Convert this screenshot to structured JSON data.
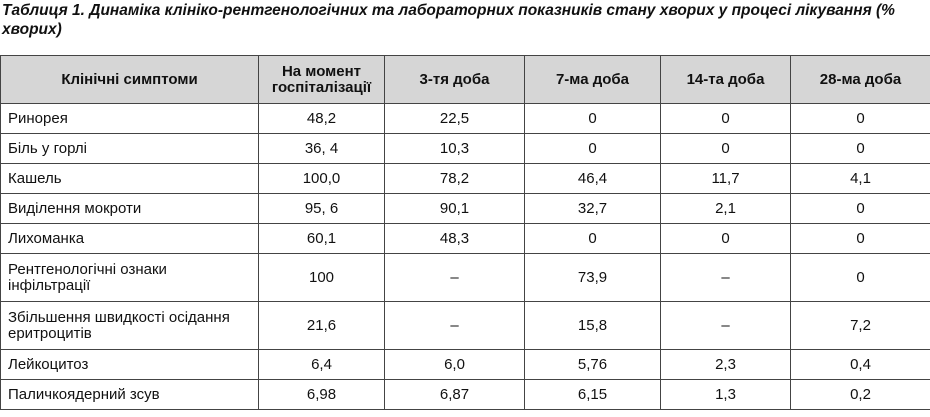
{
  "title": "Таблиця 1.  Динаміка клініко-рентгенологічних та лабораторних показників стану хворих у процесі лікування (% хворих)",
  "table": {
    "header": [
      "Клінічні симптоми",
      "На момент госпіталізації",
      "3-тя доба",
      "7-ма доба",
      "14-та доба",
      "28-ма доба"
    ],
    "rows": [
      [
        "Ринорея",
        "48,2",
        "22,5",
        "0",
        "0",
        "0"
      ],
      [
        "Біль у горлі",
        "36, 4",
        "10,3",
        "0",
        "0",
        "0"
      ],
      [
        "Кашель",
        "100,0",
        "78,2",
        "46,4",
        "11,7",
        "4,1"
      ],
      [
        "Виділення мокроти",
        "95, 6",
        "90,1",
        "32,7",
        "2,1",
        "0"
      ],
      [
        "Лихоманка",
        "60,1",
        "48,3",
        "0",
        "0",
        "0"
      ],
      [
        "Рентгенологічні ознаки інфільтрації",
        "100",
        "–",
        "73,9",
        "–",
        "0"
      ],
      [
        "Збільшення швидкості осідання еритроцитів",
        "21,6",
        "–",
        "15,8",
        "–",
        "7,2"
      ],
      [
        "Лейкоцитоз",
        "6,4",
        "6,0",
        "5,76",
        "2,3",
        "0,4"
      ],
      [
        "Паличкоядерний зсув",
        "6,98",
        "6,87",
        "6,15",
        "1,3",
        "0,2"
      ]
    ]
  }
}
